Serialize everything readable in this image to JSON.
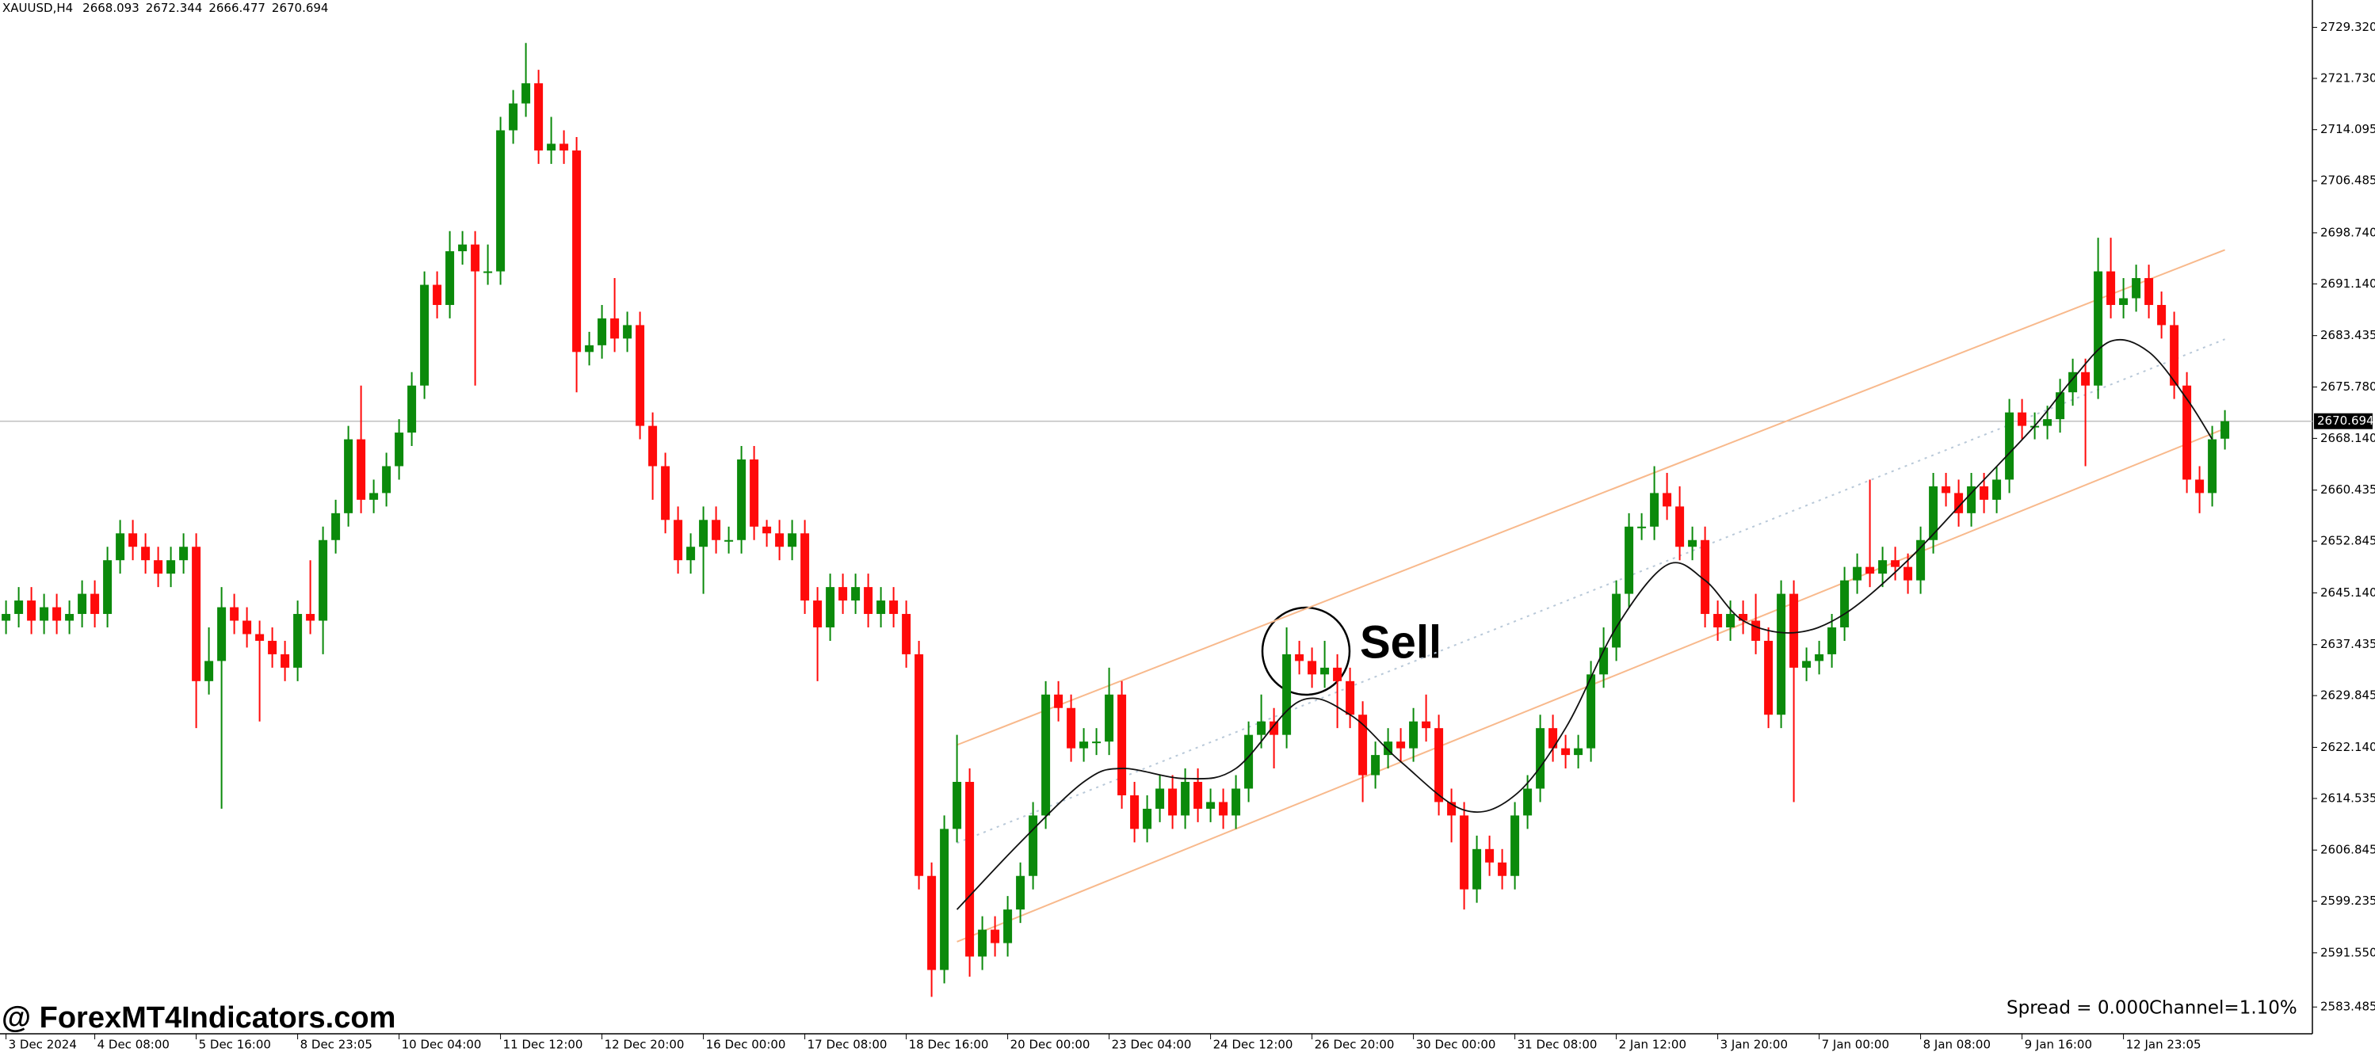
{
  "chart_data": {
    "type": "candlestick",
    "symbol": "XAUUSD,H4",
    "categories": [
      "3 Dec 2024",
      null,
      null,
      null,
      null,
      null,
      null,
      "4 Dec 08:00",
      null,
      null,
      null,
      null,
      null,
      null,
      null,
      "5 Dec 16:00",
      null,
      null,
      null,
      null,
      null,
      null,
      null,
      "8 Dec 23:05",
      null,
      null,
      null,
      null,
      null,
      null,
      null,
      "10 Dec 04:00",
      null,
      null,
      null,
      null,
      null,
      null,
      null,
      "11 Dec 12:00",
      null,
      null,
      null,
      null,
      null,
      null,
      null,
      "12 Dec 20:00",
      null,
      null,
      null,
      null,
      null,
      null,
      null,
      "16 Dec 00:00",
      null,
      null,
      null,
      null,
      null,
      null,
      null,
      "17 Dec 08:00",
      null,
      null,
      null,
      null,
      null,
      null,
      null,
      "18 Dec 16:00",
      null,
      null,
      null,
      null,
      null,
      null,
      null,
      "20 Dec 00:00",
      null,
      null,
      null,
      null,
      null,
      null,
      null,
      "23 Dec 04:00",
      null,
      null,
      null,
      null,
      null,
      null,
      null,
      "24 Dec 12:00",
      null,
      null,
      null,
      null,
      null,
      null,
      null,
      "26 Dec 20:00",
      null,
      null,
      null,
      null,
      null,
      null,
      null,
      "30 Dec 00:00",
      null,
      null,
      null,
      null,
      null,
      null,
      null,
      "31 Dec 08:00",
      null,
      null,
      null,
      null,
      null,
      null,
      null,
      "2 Jan 12:00",
      null,
      null,
      null,
      null,
      null,
      null,
      null,
      "3 Jan 20:00",
      null,
      null,
      null,
      null,
      null,
      null,
      null,
      "7 Jan 00:00",
      null,
      null,
      null,
      null,
      null,
      null,
      null,
      "8 Jan 08:00",
      null,
      null,
      null,
      null,
      null,
      null,
      null,
      "9 Jan 16:00",
      null,
      null,
      null,
      null,
      null,
      null,
      null,
      "12 Jan 23:05",
      null,
      null,
      null,
      null,
      null,
      null,
      null,
      null
    ],
    "open": [
      2641,
      2642,
      2644,
      2641,
      2643,
      2641,
      2642,
      2645,
      2642,
      2650,
      2654,
      2652,
      2650,
      2648,
      2650,
      2652,
      2632,
      2635,
      2643,
      2641,
      2639,
      2638,
      2636,
      2634,
      2642,
      2641,
      2653,
      2657,
      2668,
      2659,
      2660,
      2664,
      2669,
      2676,
      2691,
      2688,
      2696,
      2697,
      2693,
      2693,
      2714,
      2718,
      2721,
      2711,
      2712,
      2711,
      2681,
      2682,
      2686,
      2683,
      2685,
      2670,
      2664,
      2656,
      2650,
      2652,
      2656,
      2653,
      2653,
      2665,
      2655,
      2654,
      2652,
      2654,
      2644,
      2640,
      2646,
      2644,
      2646,
      2642,
      2644,
      2642,
      2636,
      2603,
      2589,
      2610,
      2617,
      2591,
      2595,
      2593,
      2598,
      2603,
      2612,
      2630,
      2628,
      2622,
      2623,
      2623,
      2630,
      2615,
      2610,
      2613,
      2616,
      2612,
      2617,
      2613,
      2614,
      2612,
      2616,
      2624,
      2626,
      2624,
      2636,
      2635,
      2633,
      2634,
      2632,
      2627,
      2618,
      2621,
      2623,
      2622,
      2626,
      2625,
      2614,
      2612,
      2601,
      2607,
      2605,
      2603,
      2612,
      2616,
      2625,
      2622,
      2621,
      2622,
      2633,
      2637,
      2645,
      2655,
      2655,
      2660,
      2658,
      2652,
      2653,
      2642,
      2640,
      2642,
      2641,
      2638,
      2627,
      2645,
      2634,
      2635,
      2636,
      2640,
      2647,
      2649,
      2648,
      2650,
      2649,
      2647,
      2653,
      2661,
      2660,
      2657,
      2661,
      2659,
      2662,
      2672,
      2670,
      2670,
      2671,
      2675,
      2678,
      2676,
      2693,
      2688,
      2689,
      2692,
      2688,
      2685,
      2676,
      2662,
      2660,
      2668.093
    ],
    "high": [
      2644,
      2646,
      2646,
      2645,
      2645,
      2644,
      2647,
      2647,
      2652,
      2656,
      2656,
      2654,
      2652,
      2652,
      2654,
      2654,
      2640,
      2646,
      2645,
      2643,
      2641,
      2640,
      2638,
      2644,
      2650,
      2655,
      2659,
      2670,
      2676,
      2662,
      2666,
      2671,
      2678,
      2693,
      2693,
      2699,
      2699,
      2699,
      2697,
      2716,
      2720,
      2727,
      2723,
      2716,
      2714,
      2713,
      2684,
      2688,
      2692,
      2687,
      2687,
      2672,
      2666,
      2658,
      2654,
      2658,
      2658,
      2655,
      2667,
      2667,
      2656,
      2656,
      2656,
      2656,
      2646,
      2648,
      2648,
      2648,
      2648,
      2646,
      2646,
      2644,
      2638,
      2605,
      2612,
      2624,
      2619,
      2597,
      2597,
      2600,
      2605,
      2614,
      2632,
      2632,
      2630,
      2625,
      2625,
      2634,
      2632,
      2617,
      2615,
      2618,
      2618,
      2619,
      2619,
      2616,
      2616,
      2618,
      2626,
      2630,
      2628,
      2640,
      2638,
      2637,
      2638,
      2636,
      2634,
      2629,
      2623,
      2625,
      2625,
      2628,
      2630,
      2627,
      2616,
      2614,
      2609,
      2609,
      2607,
      2614,
      2618,
      2627,
      2627,
      2624,
      2624,
      2635,
      2640,
      2647,
      2657,
      2657,
      2664,
      2663,
      2661,
      2655,
      2655,
      2644,
      2644,
      2644,
      2645,
      2640,
      2647,
      2647,
      2637,
      2638,
      2642,
      2649,
      2651,
      2662,
      2652,
      2652,
      2651,
      2655,
      2663,
      2663,
      2662,
      2663,
      2663,
      2664,
      2674,
      2674,
      2672,
      2673,
      2677,
      2680,
      2680,
      2698,
      2698,
      2692,
      2694,
      2694,
      2690,
      2687,
      2678,
      2664,
      2670,
      2672.344
    ],
    "low": [
      2639,
      2640,
      2639,
      2639,
      2639,
      2639,
      2640,
      2640,
      2640,
      2648,
      2650,
      2648,
      2646,
      2646,
      2648,
      2625,
      2630,
      2613,
      2639,
      2637,
      2626,
      2634,
      2632,
      2632,
      2639,
      2636,
      2651,
      2655,
      2657,
      2657,
      2658,
      2662,
      2667,
      2674,
      2686,
      2686,
      2694,
      2676,
      2691,
      2691,
      2712,
      2716,
      2709,
      2709,
      2709,
      2675,
      2679,
      2680,
      2681,
      2681,
      2668,
      2659,
      2654,
      2648,
      2648,
      2645,
      2651,
      2651,
      2651,
      2653,
      2652,
      2650,
      2650,
      2642,
      2632,
      2638,
      2642,
      2642,
      2640,
      2640,
      2640,
      2634,
      2601,
      2585,
      2587,
      2608,
      2588,
      2589,
      2591,
      2591,
      2596,
      2601,
      2610,
      2626,
      2620,
      2620,
      2621,
      2621,
      2613,
      2608,
      2608,
      2611,
      2610,
      2610,
      2611,
      2611,
      2610,
      2610,
      2614,
      2622,
      2619,
      2622,
      2633,
      2631,
      2631,
      2625,
      2625,
      2614,
      2616,
      2619,
      2620,
      2620,
      2623,
      2612,
      2608,
      2598,
      2599,
      2603,
      2601,
      2601,
      2610,
      2614,
      2620,
      2619,
      2619,
      2620,
      2631,
      2635,
      2643,
      2653,
      2653,
      2656,
      2650,
      2650,
      2640,
      2638,
      2638,
      2639,
      2636,
      2625,
      2625,
      2614,
      2632,
      2633,
      2634,
      2638,
      2645,
      2646,
      2646,
      2647,
      2645,
      2645,
      2651,
      2658,
      2655,
      2655,
      2657,
      2657,
      2660,
      2668,
      2668,
      2668,
      2669,
      2673,
      2664,
      2674,
      2686,
      2686,
      2687,
      2686,
      2683,
      2674,
      2660,
      2657,
      2658,
      2666.477
    ],
    "close": [
      2642,
      2644,
      2641,
      2643,
      2641,
      2642,
      2645,
      2642,
      2650,
      2654,
      2652,
      2650,
      2648,
      2650,
      2652,
      2632,
      2635,
      2643,
      2641,
      2639,
      2638,
      2636,
      2634,
      2642,
      2641,
      2653,
      2657,
      2668,
      2659,
      2660,
      2664,
      2669,
      2676,
      2691,
      2688,
      2696,
      2697,
      2693,
      2693,
      2714,
      2718,
      2721,
      2711,
      2712,
      2711,
      2681,
      2682,
      2686,
      2683,
      2685,
      2670,
      2664,
      2656,
      2650,
      2652,
      2656,
      2653,
      2653,
      2665,
      2655,
      2654,
      2652,
      2654,
      2644,
      2640,
      2646,
      2644,
      2646,
      2642,
      2644,
      2642,
      2636,
      2603,
      2589,
      2610,
      2617,
      2591,
      2595,
      2593,
      2598,
      2603,
      2612,
      2630,
      2628,
      2622,
      2623,
      2623,
      2630,
      2615,
      2610,
      2613,
      2616,
      2612,
      2617,
      2613,
      2614,
      2612,
      2616,
      2624,
      2626,
      2624,
      2636,
      2635,
      2633,
      2634,
      2632,
      2627,
      2618,
      2621,
      2623,
      2622,
      2626,
      2625,
      2614,
      2612,
      2601,
      2607,
      2605,
      2603,
      2612,
      2616,
      2625,
      2622,
      2621,
      2622,
      2633,
      2637,
      2645,
      2655,
      2655,
      2660,
      2658,
      2652,
      2653,
      2642,
      2640,
      2642,
      2641,
      2638,
      2627,
      2645,
      2634,
      2635,
      2636,
      2640,
      2647,
      2649,
      2648,
      2650,
      2649,
      2647,
      2653,
      2661,
      2660,
      2657,
      2661,
      2659,
      2662,
      2672,
      2670,
      2670,
      2671,
      2675,
      2678,
      2676,
      2693,
      2688,
      2689,
      2692,
      2688,
      2685,
      2676,
      2662,
      2660,
      2668,
      2670.694
    ],
    "up_color": "#0b8a0b",
    "down_color": "#ff0a0a",
    "ylim": [
      2579.5,
      2733.4
    ],
    "yticks": [
      {
        "value": 2729.32,
        "label": "2729.320"
      },
      {
        "value": 2721.73,
        "label": "2721.730"
      },
      2714.095,
      2706.485,
      {
        "value": 2698.74,
        "label": "2698.740"
      },
      {
        "value": 2691.14,
        "label": "2691.140"
      },
      2683.435,
      {
        "value": 2675.78,
        "label": "2675.780"
      },
      {
        "value": 2668.14,
        "label": "2668.140"
      },
      2660.435,
      2652.845,
      {
        "value": 2645.14,
        "label": "2645.140"
      },
      2637.435,
      2629.845,
      {
        "value": 2622.14,
        "label": "2622.140"
      },
      2614.535,
      2606.845,
      2599.235,
      {
        "value": 2591.55,
        "label": "2591.550"
      },
      2583.485
    ],
    "grid": false,
    "channel": {
      "x": [
        75,
        175
      ],
      "upper": [
        2622.5,
        2696.2
      ],
      "middle": [
        2607.9,
        2682.9
      ],
      "lower": [
        2593.2,
        2669.6
      ],
      "color": "#f8b98c",
      "middle_color": "#b8c8d8"
    },
    "trend_line": {
      "x": [
        75,
        80,
        85,
        88,
        93,
        97,
        102,
        106,
        110,
        115,
        119,
        123,
        127,
        131,
        134,
        137,
        141,
        145,
        150,
        155,
        160,
        163,
        166,
        169,
        172,
        174
      ],
      "values": [
        2598,
        2608,
        2617,
        2619,
        2617.5,
        2619,
        2629,
        2627,
        2620,
        2612.8,
        2615,
        2625,
        2640,
        2649.3,
        2647,
        2641,
        2639.2,
        2642,
        2650,
        2660,
        2670,
        2677,
        2682.6,
        2681,
        2674,
        2668
      ],
      "color": "#111111"
    },
    "annotations": {
      "signal": "Sell",
      "watermark": "@ ForexMT4Indicators.com",
      "spread": "Spread = 0.000",
      "channel": "Channel=1.10%"
    }
  }
}
